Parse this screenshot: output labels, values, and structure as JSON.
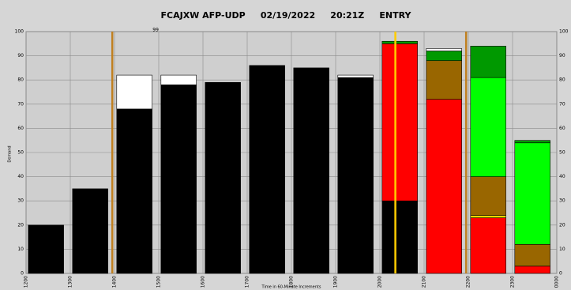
{
  "chart_data": {
    "type": "stacked_bar",
    "title": "FCAJXW AFP-UDP     02/19/2022     20:21Z     ENTRY",
    "y_label": "Demand",
    "x_label": "Time in 60-Minute Increments",
    "annotation": "99",
    "x": [
      12,
      13,
      14,
      15,
      16,
      17,
      18,
      19,
      20,
      21,
      22,
      23
    ],
    "xlim": [
      12,
      24
    ],
    "xticks": [
      {
        "value": 12,
        "label": "1200"
      },
      {
        "value": 13,
        "label": "1300"
      },
      {
        "value": 14,
        "label": "1400"
      },
      {
        "value": 15,
        "label": "1500"
      },
      {
        "value": 16,
        "label": "1600"
      },
      {
        "value": 17,
        "label": "1700"
      },
      {
        "value": 18,
        "label": "1800"
      },
      {
        "value": 19,
        "label": "1900"
      },
      {
        "value": 20,
        "label": "2000"
      },
      {
        "value": 21,
        "label": "2100"
      },
      {
        "value": 22,
        "label": "2200"
      },
      {
        "value": 23,
        "label": "2300"
      },
      {
        "value": 24,
        "label": "0000"
      }
    ],
    "ylim": [
      0,
      100
    ],
    "yticks": [
      0,
      10,
      20,
      30,
      40,
      50,
      60,
      70,
      80,
      90,
      100
    ],
    "grid": true,
    "series": [
      {
        "color": "#000000",
        "values": [
          20,
          35,
          68,
          78,
          79,
          86,
          85,
          81,
          30,
          null,
          null,
          null
        ]
      },
      {
        "color": "#ff0000",
        "values": [
          null,
          null,
          null,
          null,
          null,
          null,
          null,
          null,
          65,
          72,
          23,
          3
        ]
      },
      {
        "color": "#ffd700",
        "values": [
          null,
          null,
          null,
          null,
          null,
          null,
          null,
          null,
          null,
          null,
          1,
          null
        ]
      },
      {
        "color": "#996600",
        "values": [
          null,
          null,
          null,
          null,
          null,
          null,
          null,
          null,
          null,
          16,
          16,
          9
        ]
      },
      {
        "color": "#00ff00",
        "values": [
          null,
          null,
          null,
          null,
          null,
          null,
          null,
          null,
          null,
          null,
          41,
          42
        ]
      },
      {
        "color": "#009900",
        "values": [
          null,
          null,
          null,
          null,
          null,
          null,
          null,
          null,
          1,
          4,
          13,
          1
        ]
      },
      {
        "color": "#ffffff",
        "values": [
          null,
          null,
          14,
          4,
          null,
          null,
          null,
          1,
          null,
          1,
          null,
          null
        ]
      }
    ],
    "vlines": [
      {
        "x": 13.95,
        "color": "#c08020"
      },
      {
        "x": 20.35,
        "color": "#ffcc00"
      },
      {
        "x": 21.95,
        "color": "#c08020"
      }
    ]
  }
}
